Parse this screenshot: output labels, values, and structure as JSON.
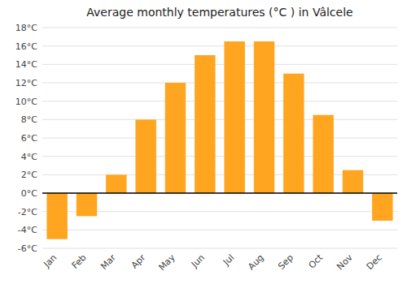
{
  "chart_data": {
    "type": "bar",
    "title": "Average monthly temperatures (°C ) in Vâlcele",
    "categories": [
      "Jan",
      "Feb",
      "Mar",
      "Apr",
      "May",
      "Jun",
      "Jul",
      "Aug",
      "Sep",
      "Oct",
      "Nov",
      "Dec"
    ],
    "values": [
      -5.0,
      -2.5,
      2.0,
      8.0,
      12.0,
      15.0,
      16.5,
      16.5,
      13.0,
      8.5,
      2.5,
      -3.0
    ],
    "color": "#FFA520",
    "ylim": [
      -6,
      18
    ],
    "yticks": [
      {
        "value": -6,
        "label": "-6°C"
      },
      {
        "value": -4,
        "label": "-4°C"
      },
      {
        "value": -2,
        "label": "-2°C"
      },
      {
        "value": 0,
        "label": "0°C"
      },
      {
        "value": 2,
        "label": "2°C"
      },
      {
        "value": 4,
        "label": "4°C"
      },
      {
        "value": 6,
        "label": "6°C"
      },
      {
        "value": 8,
        "label": "8°C"
      },
      {
        "value": 10,
        "label": "10°C"
      },
      {
        "value": 12,
        "label": "12°C"
      },
      {
        "value": 14,
        "label": "14°C"
      },
      {
        "value": 16,
        "label": "16°C"
      },
      {
        "value": 18,
        "label": "18°C"
      }
    ],
    "grid": true
  }
}
